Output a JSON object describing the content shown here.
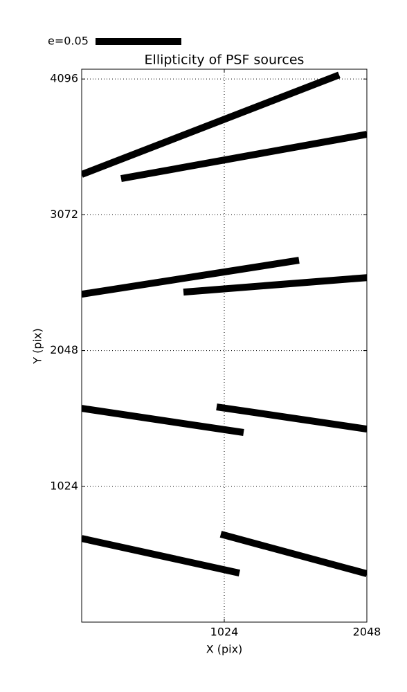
{
  "chart_data": {
    "type": "whisker",
    "title": "Ellipticity of PSF sources",
    "x_label": "X (pix)",
    "y_label": "Y (pix)",
    "key_label": "e=0.05",
    "color": "#000000",
    "xlim": [
      0,
      2048
    ],
    "ylim": [
      0,
      4170
    ],
    "xticks": [
      1024,
      2048
    ],
    "yticks": [
      1024,
      2048,
      3072,
      4096
    ],
    "grid": true,
    "segments": {
      "x1": [
        0,
        283,
        0,
        731,
        0,
        969,
        0,
        999
      ],
      "y1": [
        3376,
        3345,
        2473,
        2489,
        1612,
        1623,
        631,
        663
      ],
      "x2": [
        1849,
        2048,
        1561,
        2048,
        1163,
        2048,
        1133,
        2048
      ],
      "y2": [
        4127,
        3679,
        2729,
        2598,
        1430,
        1456,
        370,
        365
      ]
    }
  }
}
